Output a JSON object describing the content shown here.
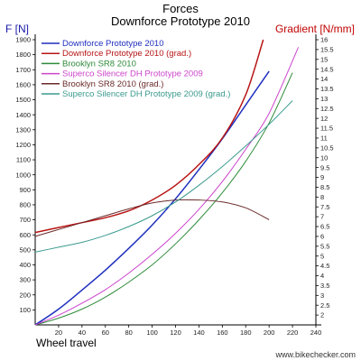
{
  "chart_data": {
    "type": "line",
    "title": "Forces",
    "subtitle": "Downforce Prototype 2010",
    "ylabel_left": "F [N]",
    "ylabel_right": "Gradient [N/mm]",
    "xlabel": "Wheel travel",
    "xlim": [
      0,
      240
    ],
    "ylim_left": [
      0,
      1900
    ],
    "ylim_right": [
      1.5,
      16
    ],
    "x_ticks": [
      "20",
      "40",
      "60",
      "80",
      "100",
      "120",
      "140",
      "160",
      "180",
      "200",
      "220",
      "240"
    ],
    "y_left_ticks": [
      "100",
      "200",
      "300",
      "400",
      "500",
      "600",
      "700",
      "800",
      "900",
      "1000",
      "1100",
      "1200",
      "1300",
      "1400",
      "1500",
      "1600",
      "1700",
      "1800",
      "1900"
    ],
    "y_right_ticks": [
      "2",
      "2.5",
      "3",
      "3.5",
      "4",
      "4.5",
      "5",
      "5.5",
      "6",
      "6.5",
      "7",
      "7.5",
      "8",
      "8.5",
      "9",
      "9.5",
      "10",
      "10.5",
      "11",
      "11.5",
      "12",
      "12.5",
      "13",
      "13.5",
      "14",
      "14.5",
      "15",
      "15.5",
      "16"
    ],
    "grid": false,
    "legend_position": "top-left",
    "series": [
      {
        "name": "Downforce Prototype 2010",
        "axis": "left",
        "color": "#1f2fbf",
        "width": 1.5,
        "x": [
          0,
          20,
          40,
          60,
          80,
          100,
          120,
          140,
          160,
          180,
          200
        ],
        "y": [
          0,
          105,
          232,
          365,
          510,
          665,
          840,
          1035,
          1240,
          1465,
          1690
        ]
      },
      {
        "name": "Downforce Prototype 2010 (grad.)",
        "axis": "right",
        "color": "#b81414",
        "width": 1.5,
        "x": [
          0,
          20,
          40,
          60,
          80,
          100,
          120,
          140,
          160,
          180,
          195
        ],
        "y": [
          6.2,
          6.45,
          6.7,
          6.95,
          7.3,
          7.85,
          8.6,
          9.65,
          11.0,
          13.2,
          16.0
        ]
      },
      {
        "name": "Brooklyn SR8 2010",
        "axis": "left",
        "color": "#2e8b3a",
        "width": 1,
        "x": [
          0,
          20,
          40,
          60,
          80,
          100,
          120,
          140,
          160,
          180,
          200,
          220
        ],
        "y": [
          0,
          45,
          105,
          185,
          285,
          400,
          540,
          700,
          880,
          1090,
          1345,
          1680
        ]
      },
      {
        "name": "Superco Silencer DH Prototype 2009",
        "axis": "left",
        "color": "#cc44cc",
        "width": 1,
        "x": [
          0,
          20,
          40,
          60,
          80,
          100,
          120,
          140,
          160,
          180,
          200,
          225
        ],
        "y": [
          0,
          65,
          145,
          235,
          345,
          470,
          610,
          770,
          955,
          1170,
          1410,
          1850
        ]
      },
      {
        "name": "Brooklyn SR8 2010 (grad.)",
        "axis": "right",
        "color": "#6a2a2a",
        "width": 1,
        "x": [
          0,
          20,
          40,
          60,
          80,
          100,
          120,
          140,
          160,
          180,
          200
        ],
        "y": [
          6.0,
          6.35,
          6.7,
          7.05,
          7.4,
          7.7,
          7.85,
          7.85,
          7.75,
          7.45,
          6.85
        ]
      },
      {
        "name": "Superco Silencer DH Prototype 2009 (grad.)",
        "axis": "right",
        "color": "#3a9a8e",
        "width": 1,
        "x": [
          0,
          20,
          40,
          60,
          80,
          100,
          120,
          140,
          160,
          180,
          200,
          220
        ],
        "y": [
          5.2,
          5.45,
          5.7,
          6.05,
          6.5,
          7.05,
          7.75,
          8.6,
          9.55,
          10.6,
          11.7,
          12.9
        ]
      }
    ]
  },
  "watermark": "www.bikechecker.com"
}
